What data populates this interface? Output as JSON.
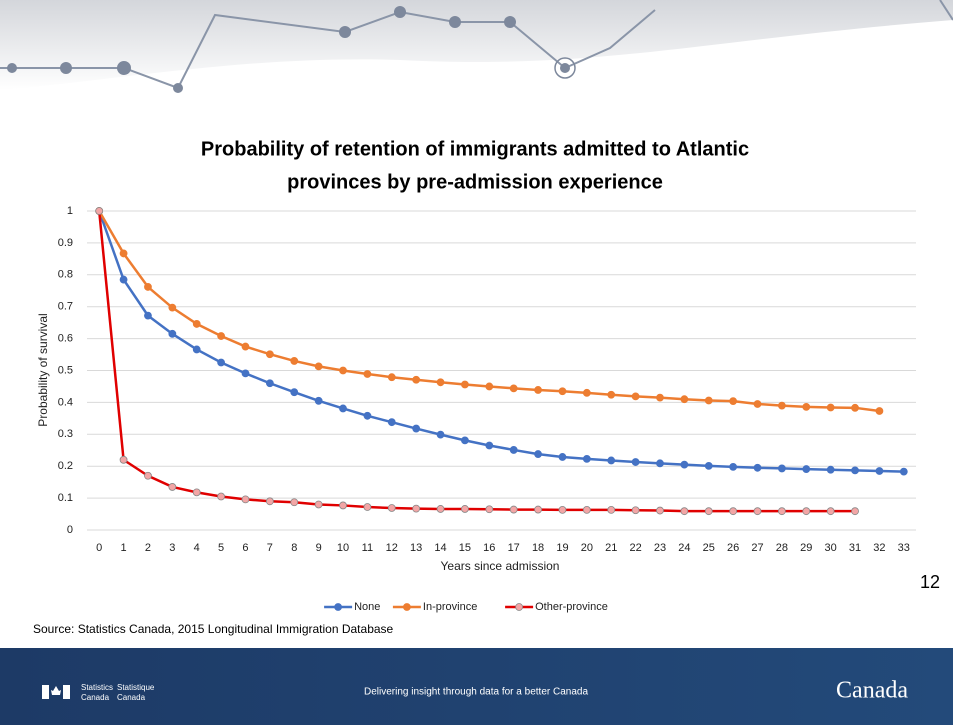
{
  "chart_data": {
    "type": "line",
    "title": [
      "Probability of retention of immigrants admitted to Atlantic",
      "provinces by pre-admission experience"
    ],
    "x_label": "Years since admission",
    "y_label": "Probability of survival",
    "categories": [
      0,
      1,
      2,
      3,
      4,
      5,
      6,
      7,
      8,
      9,
      10,
      11,
      12,
      13,
      14,
      15,
      16,
      17,
      18,
      19,
      20,
      21,
      22,
      23,
      24,
      25,
      26,
      27,
      28,
      29,
      30,
      31,
      32,
      33
    ],
    "ylim": [
      0,
      1
    ],
    "yticks": [
      0,
      0.1,
      0.2,
      0.3,
      0.4,
      0.5,
      0.6,
      0.7,
      0.8,
      0.9,
      1
    ],
    "grid": true,
    "legend": "bottom",
    "series": [
      {
        "name": "None",
        "color": "#4472c4",
        "marker_color": "#4472c4",
        "values": [
          1,
          0.785,
          0.672,
          0.615,
          0.566,
          0.525,
          0.491,
          0.46,
          0.432,
          0.405,
          0.381,
          0.358,
          0.338,
          0.318,
          0.299,
          0.281,
          0.265,
          0.251,
          0.238,
          0.229,
          0.223,
          0.218,
          0.213,
          0.209,
          0.205,
          0.201,
          0.198,
          0.195,
          0.193,
          0.191,
          0.189,
          0.187,
          0.185,
          0.183
        ]
      },
      {
        "name": "In-province",
        "color": "#ed7d31",
        "marker_color": "#ed7d31",
        "values": [
          1,
          0.867,
          0.762,
          0.697,
          0.646,
          0.608,
          0.575,
          0.551,
          0.53,
          0.513,
          0.5,
          0.489,
          0.479,
          0.471,
          0.463,
          0.456,
          0.45,
          0.444,
          0.439,
          0.435,
          0.43,
          0.424,
          0.419,
          0.415,
          0.41,
          0.406,
          0.404,
          0.395,
          0.39,
          0.386,
          0.384,
          0.383,
          0.373,
          null
        ]
      },
      {
        "name": "Other-province",
        "color": "#e00000",
        "marker_color": "#f2a6a6",
        "values": [
          1,
          0.22,
          0.17,
          0.135,
          0.118,
          0.105,
          0.096,
          0.09,
          0.087,
          0.08,
          0.077,
          0.072,
          0.069,
          0.067,
          0.066,
          0.066,
          0.065,
          0.064,
          0.064,
          0.063,
          0.063,
          0.063,
          0.062,
          0.061,
          0.059,
          0.059,
          0.059,
          0.059,
          0.059,
          0.059,
          0.059,
          0.059,
          null,
          null
        ]
      }
    ]
  },
  "slide_number": "12",
  "source": "Source: Statistics Canada, 2015 Longitudinal Immigration Database",
  "footer": {
    "org_en": [
      "Statistics",
      "Canada"
    ],
    "org_fr": [
      "Statistique",
      "Canada"
    ],
    "tagline": "Delivering insight through data for a better Canada",
    "wordmark": "Canada"
  }
}
